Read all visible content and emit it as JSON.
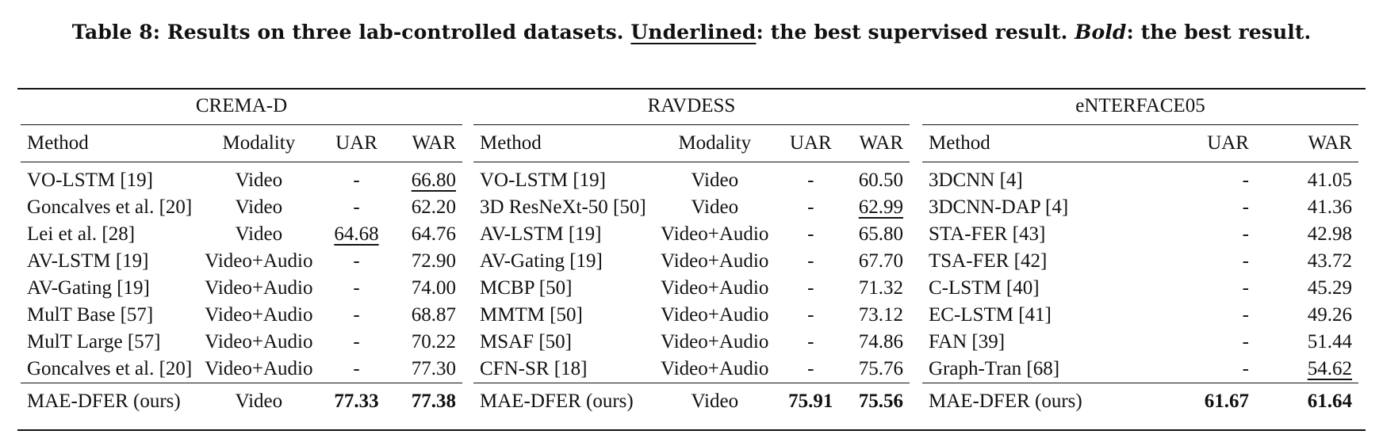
{
  "caption": {
    "prefix": "Table 8: Results on three lab-controlled datasets. ",
    "underlined_word": "Underlined",
    "middle": ": the best supervised result. ",
    "bold_word": "Bold",
    "suffix": ": the best result."
  },
  "crema": {
    "title": "CREMA-D",
    "headers": [
      "Method",
      "Modality",
      "UAR",
      "WAR"
    ],
    "rows": [
      [
        "VO-LSTM [19]",
        "Video",
        "-",
        "66.80"
      ],
      [
        "Goncalves et al. [20]",
        "Video",
        "-",
        "62.20"
      ],
      [
        "Lei et al. [28]",
        "Video",
        "64.68",
        "64.76"
      ],
      [
        "AV-LSTM [19]",
        "Video+Audio",
        "-",
        "72.90"
      ],
      [
        "AV-Gating [19]",
        "Video+Audio",
        "-",
        "74.00"
      ],
      [
        "MulT Base [57]",
        "Video+Audio",
        "-",
        "68.87"
      ],
      [
        "MulT Large [57]",
        "Video+Audio",
        "-",
        "70.22"
      ],
      [
        "Goncalves et al. [20]",
        "Video+Audio",
        "-",
        "77.30"
      ]
    ],
    "ours": [
      "MAE-DFER (ours)",
      "Video",
      "77.33",
      "77.38"
    ]
  },
  "ravdess": {
    "title": "RAVDESS",
    "headers": [
      "Method",
      "Modality",
      "UAR",
      "WAR"
    ],
    "rows": [
      [
        "VO-LSTM [19]",
        "Video",
        "-",
        "60.50"
      ],
      [
        "3D ResNeXt-50 [50]",
        "Video",
        "-",
        "62.99"
      ],
      [
        "AV-LSTM [19]",
        "Video+Audio",
        "-",
        "65.80"
      ],
      [
        "AV-Gating [19]",
        "Video+Audio",
        "-",
        "67.70"
      ],
      [
        "MCBP [50]",
        "Video+Audio",
        "-",
        "71.32"
      ],
      [
        "MMTM [50]",
        "Video+Audio",
        "-",
        "73.12"
      ],
      [
        "MSAF [50]",
        "Video+Audio",
        "-",
        "74.86"
      ],
      [
        "CFN-SR [18]",
        "Video+Audio",
        "-",
        "75.76"
      ]
    ],
    "ours": [
      "MAE-DFER (ours)",
      "Video",
      "75.91",
      "75.56"
    ]
  },
  "enterface": {
    "title": "eNTERFACE05",
    "headers": [
      "Method",
      "UAR",
      "WAR"
    ],
    "rows": [
      [
        "3DCNN [4]",
        "-",
        "41.05"
      ],
      [
        "3DCNN-DAP [4]",
        "-",
        "41.36"
      ],
      [
        "STA-FER [43]",
        "-",
        "42.98"
      ],
      [
        "TSA-FER [42]",
        "-",
        "43.72"
      ],
      [
        "C-LSTM [40]",
        "-",
        "45.29"
      ],
      [
        "EC-LSTM [41]",
        "-",
        "49.26"
      ],
      [
        "FAN [39]",
        "-",
        "51.44"
      ],
      [
        "Graph-Tran [68]",
        "-",
        "54.62"
      ]
    ],
    "ours": [
      "MAE-DFER (ours)",
      "61.67",
      "61.64"
    ]
  }
}
